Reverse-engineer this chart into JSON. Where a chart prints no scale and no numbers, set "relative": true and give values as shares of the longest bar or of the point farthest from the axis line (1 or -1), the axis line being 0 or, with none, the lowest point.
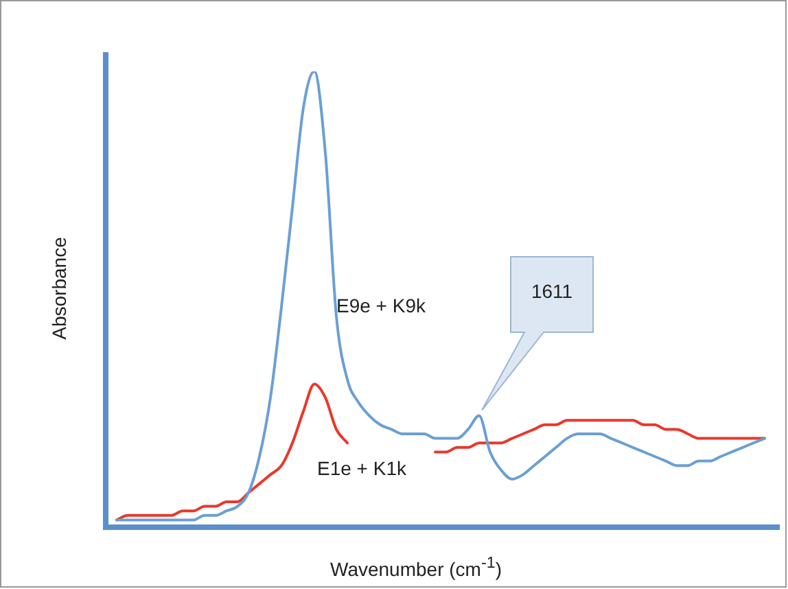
{
  "chart_data": {
    "type": "line",
    "relative": true,
    "xlabel": "Wavenumber (cm$^{-1}$)",
    "ylabel": "Absorbance",
    "tick_labels": false,
    "grid": false,
    "legend": false,
    "marker": "none",
    "line_style": "solid",
    "categories": [
      null,
      null,
      null,
      null,
      null,
      null,
      null,
      null,
      null,
      null,
      null,
      null,
      null,
      null,
      null,
      null,
      null,
      null,
      null,
      null,
      null,
      null,
      null,
      null,
      null,
      null,
      null,
      null,
      null,
      null,
      null,
      null,
      null,
      null,
      null,
      null,
      null,
      null,
      null,
      null,
      null,
      null,
      null,
      null,
      null,
      null,
      null,
      null,
      null,
      null,
      null,
      null,
      null,
      null,
      null,
      null,
      null,
      null,
      null,
      null
    ],
    "series": [
      {
        "name": "E9e + K9k",
        "color": "#6a9fd4",
        "values": [
          0.01,
          0.01,
          0.01,
          0.01,
          0.01,
          0.01,
          0.01,
          0.01,
          0.02,
          0.02,
          0.03,
          0.04,
          0.07,
          0.15,
          0.28,
          0.48,
          0.7,
          0.92,
          1,
          0.82,
          0.46,
          0.32,
          0.27,
          0.24,
          0.22,
          0.21,
          0.2,
          0.2,
          0.2,
          0.19,
          0.19,
          0.19,
          0.21,
          0.24,
          0.16,
          0.12,
          0.1,
          0.11,
          0.13,
          0.15,
          0.17,
          0.19,
          0.2,
          0.2,
          0.2,
          0.19,
          0.18,
          0.17,
          0.16,
          0.15,
          0.14,
          0.13,
          0.13,
          0.14,
          0.14,
          0.15,
          0.16,
          0.17,
          0.18,
          0.19
        ]
      },
      {
        "name": "E1e + K1k",
        "color": "#e8382b",
        "values": [
          0.01,
          0.02,
          0.02,
          0.02,
          0.02,
          0.02,
          0.03,
          0.03,
          0.04,
          0.04,
          0.05,
          0.05,
          0.07,
          0.09,
          0.11,
          0.13,
          0.18,
          0.25,
          0.31,
          0.28,
          0.21,
          0.18,
          null,
          null,
          null,
          null,
          null,
          null,
          null,
          0.16,
          0.16,
          0.17,
          0.17,
          0.18,
          0.18,
          0.18,
          0.19,
          0.2,
          0.21,
          0.22,
          0.22,
          0.23,
          0.23,
          0.23,
          0.23,
          0.23,
          0.23,
          0.23,
          0.22,
          0.22,
          0.21,
          0.21,
          0.2,
          0.19,
          0.19,
          0.19,
          0.19,
          0.19,
          0.19,
          0.19
        ]
      }
    ],
    "annotations": [
      "1611"
    ]
  }
}
